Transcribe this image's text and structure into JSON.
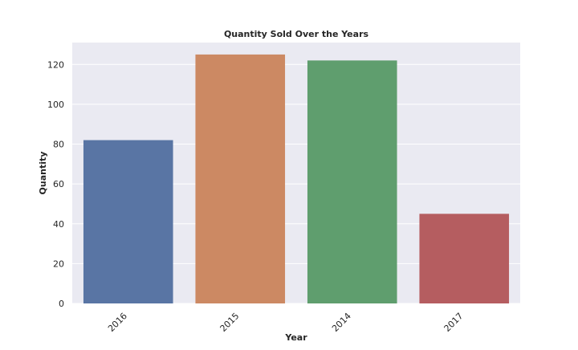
{
  "chart_data": {
    "type": "bar",
    "title": "Quantity Sold Over the Years",
    "xlabel": "Year",
    "ylabel": "Quantity",
    "categories": [
      "2016",
      "2015",
      "2014",
      "2017"
    ],
    "values": [
      82,
      125,
      122,
      45
    ],
    "ylim": [
      0,
      131
    ],
    "yticks": [
      0,
      20,
      40,
      60,
      80,
      100,
      120
    ],
    "colors": [
      "#5975a4",
      "#cc8963",
      "#5f9e6e",
      "#b55d60"
    ],
    "background": "#eaeaf2",
    "grid": true,
    "legend": "none"
  }
}
